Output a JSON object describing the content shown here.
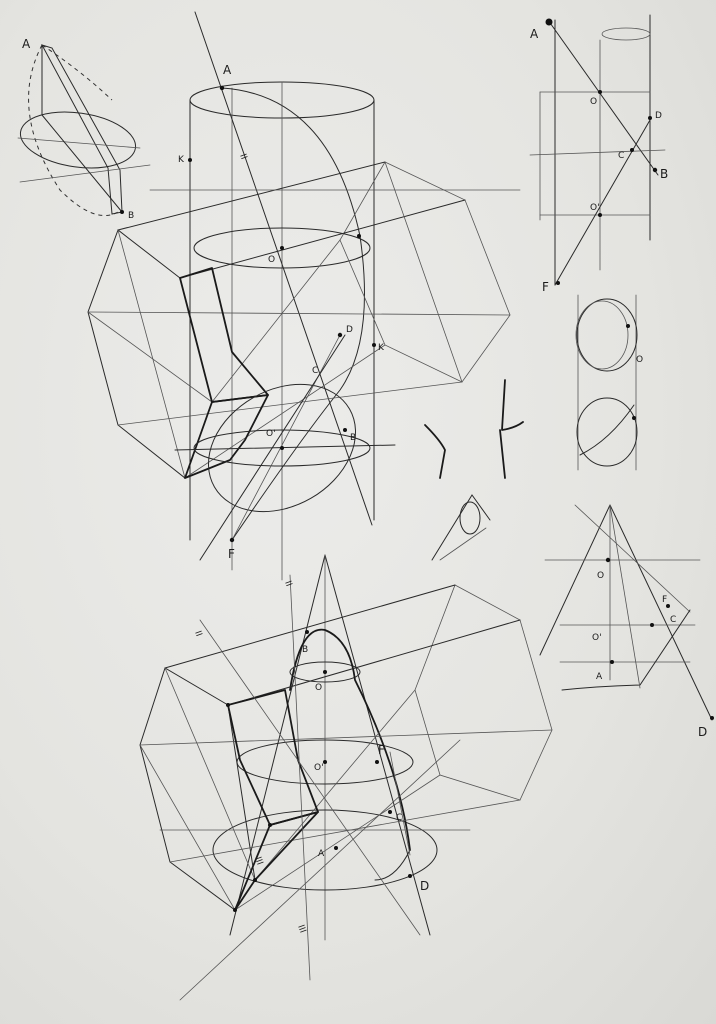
{
  "sheet": {
    "paper_color": "#e6e6e2",
    "ink_color": "#1a1a1a"
  },
  "labels": {
    "top_left": {
      "a": "A",
      "b": "B"
    },
    "main_top": {
      "a": "A",
      "k1": "K",
      "o": "O",
      "k2": "K",
      "d": "D",
      "o1": "O'",
      "b": "B",
      "c": "C",
      "f": "F",
      "tick": "II"
    },
    "right_top": {
      "a": "A",
      "o": "O",
      "d": "D",
      "c": "C",
      "b": "B",
      "o1": "O'",
      "f": "F"
    },
    "right_middle": {
      "o": "O"
    },
    "right_bottom": {
      "o": "O",
      "f": "F",
      "c": "C",
      "o1": "O'",
      "a": "A",
      "d": "D"
    },
    "main_bottom": {
      "b": "B",
      "o": "O",
      "o1": "O'",
      "f": "F",
      "c": "C",
      "a": "A",
      "d": "D",
      "tick1": "II",
      "tick2": "II",
      "tick3": "III",
      "tick4": "III"
    }
  }
}
